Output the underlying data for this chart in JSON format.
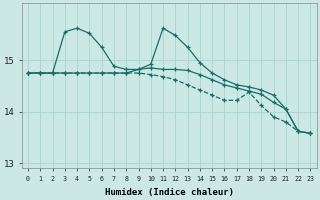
{
  "xlabel": "Humidex (Indice chaleur)",
  "background_color": "#cbe8e4",
  "line_color": "#1a6e68",
  "grid_color": "#a8d4ce",
  "x": [
    0,
    1,
    2,
    3,
    4,
    5,
    6,
    7,
    8,
    9,
    10,
    11,
    12,
    13,
    14,
    15,
    16,
    17,
    18,
    19,
    20,
    21,
    22,
    23
  ],
  "line1": [
    14.75,
    14.75,
    14.75,
    15.55,
    15.62,
    15.52,
    15.25,
    14.88,
    14.82,
    14.82,
    14.85,
    14.82,
    14.82,
    14.8,
    14.72,
    14.62,
    14.52,
    14.46,
    14.4,
    14.34,
    14.18,
    14.05,
    13.62,
    13.58
  ],
  "line2": [
    14.75,
    14.75,
    14.75,
    14.75,
    14.75,
    14.75,
    14.75,
    14.75,
    14.75,
    14.82,
    14.92,
    15.62,
    15.48,
    15.25,
    14.95,
    14.75,
    14.62,
    14.52,
    14.48,
    14.42,
    14.32,
    14.05,
    13.62,
    13.58
  ],
  "line3": [
    14.75,
    14.75,
    14.75,
    14.75,
    14.75,
    14.75,
    14.75,
    14.75,
    14.75,
    14.75,
    14.72,
    14.68,
    14.62,
    14.52,
    14.42,
    14.32,
    14.22,
    14.22,
    14.38,
    14.12,
    13.9,
    13.8,
    13.62,
    13.58
  ],
  "yticks": [
    13,
    14,
    15
  ],
  "ylim": [
    12.9,
    16.1
  ],
  "xlim": [
    -0.5,
    23.5
  ]
}
